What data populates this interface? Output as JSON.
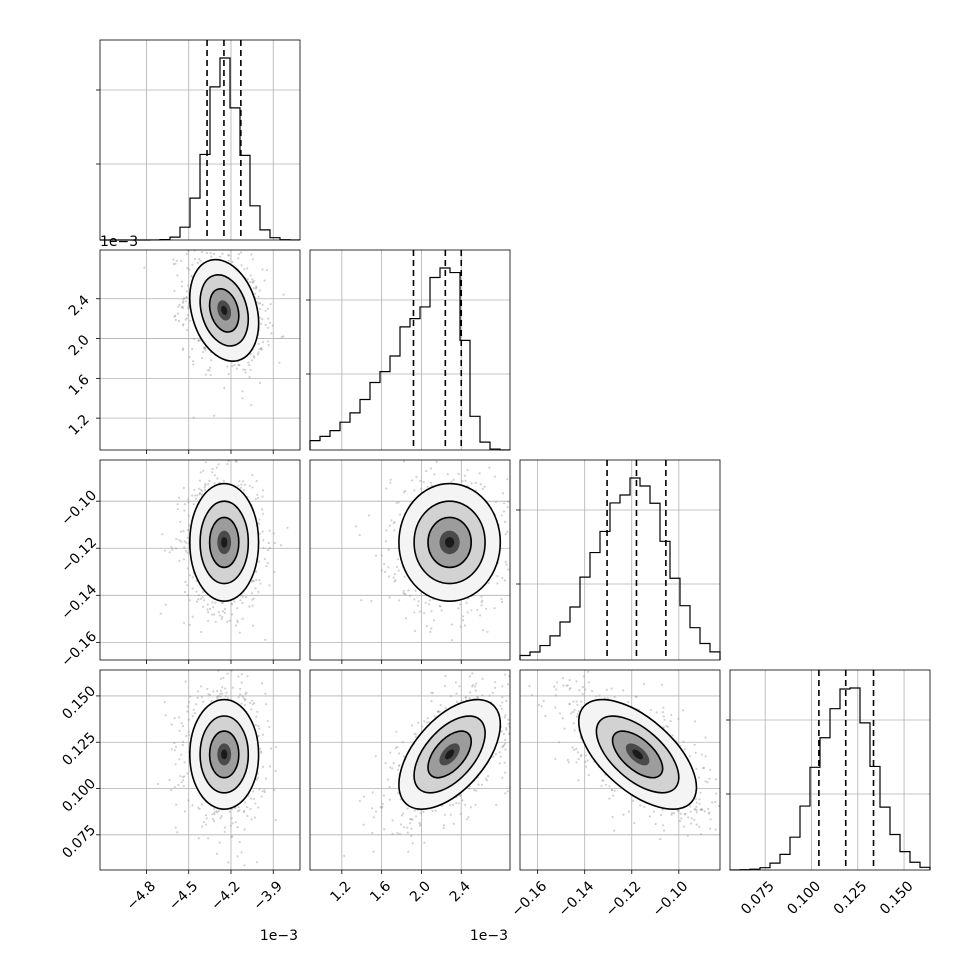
{
  "chart_data": {
    "type": "corner",
    "grid": true,
    "parameters": [
      {
        "range": [
          -0.00513,
          -0.00371
        ],
        "ticks": [
          -0.0048,
          -0.0045,
          -0.0042,
          -0.0039
        ],
        "tick_labels": [
          "−4.8",
          "−4.5",
          "−4.2",
          "−3.9"
        ],
        "offset": "1e−3",
        "mean": -0.004248,
        "std": 0.000122
      },
      {
        "range": [
          0.00088,
          0.00289
        ],
        "ticks": [
          0.0012,
          0.0016,
          0.002,
          0.0024
        ],
        "tick_labels": [
          "1.2",
          "1.6",
          "2.0",
          "2.4"
        ],
        "offset": "1e−3",
        "mean": 0.002283,
        "std": 0.000255
      },
      {
        "range": [
          -0.1675,
          -0.0825
        ],
        "ticks": [
          -0.16,
          -0.14,
          -0.12,
          -0.1
        ],
        "tick_labels": [
          "−0.16",
          "−0.14",
          "−0.12",
          "−0.10"
        ],
        "offset": "",
        "mean": -0.1175,
        "std": 0.0125
      },
      {
        "range": [
          0.056,
          0.164
        ],
        "ticks": [
          0.075,
          0.1,
          0.125,
          0.15
        ],
        "tick_labels": [
          "0.075",
          "0.100",
          "0.125",
          "0.150"
        ],
        "offset": "",
        "mean": 0.1184,
        "std": 0.0148
      }
    ],
    "quantiles": [
      [
        -0.00437,
        -0.00425,
        -0.00413
      ],
      [
        0.00192,
        0.00224,
        0.0024
      ],
      [
        -0.1305,
        -0.118,
        -0.1055
      ],
      [
        0.104,
        0.1185,
        0.1335
      ]
    ],
    "correlation": [
      [
        1.0,
        -0.25,
        0.0,
        0.0
      ],
      [
        -0.25,
        1.0,
        0.0,
        0.55
      ],
      [
        0.0,
        0.0,
        1.0,
        -0.6
      ],
      [
        0.0,
        0.55,
        -0.6,
        1.0
      ]
    ]
  }
}
